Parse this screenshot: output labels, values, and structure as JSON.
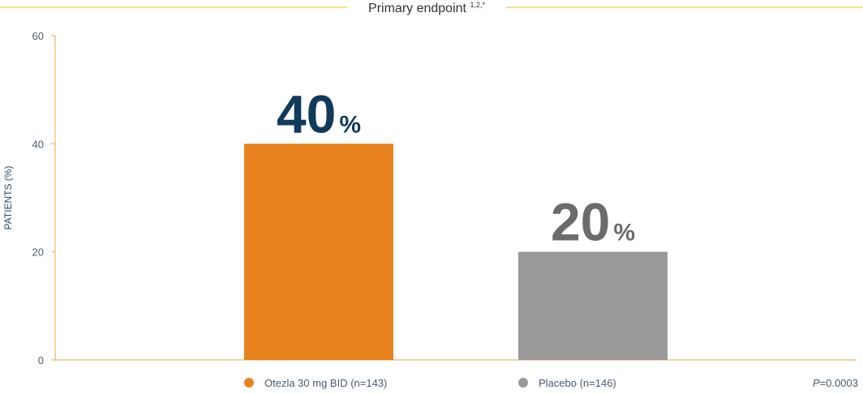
{
  "chart_data": {
    "type": "bar",
    "title": "Primary endpoint",
    "title_superscript": "1,2,*",
    "y_label": "PATIENTS (%)",
    "series": [
      {
        "name": "Otezla 30 mg BID (n=143)",
        "color": "#e8821e",
        "label_color": "#0f3a5a",
        "values": [
          40
        ],
        "value_labels": [
          "40%"
        ]
      },
      {
        "name": "Placebo (n=146)",
        "color": "#999999",
        "label_color": "#6b6b6b",
        "values": [
          20
        ],
        "value_labels": [
          "20%"
        ]
      }
    ],
    "ylim": [
      0,
      60
    ],
    "yticks": [
      0,
      20,
      40,
      60
    ],
    "annotation": "P=0.0003"
  }
}
